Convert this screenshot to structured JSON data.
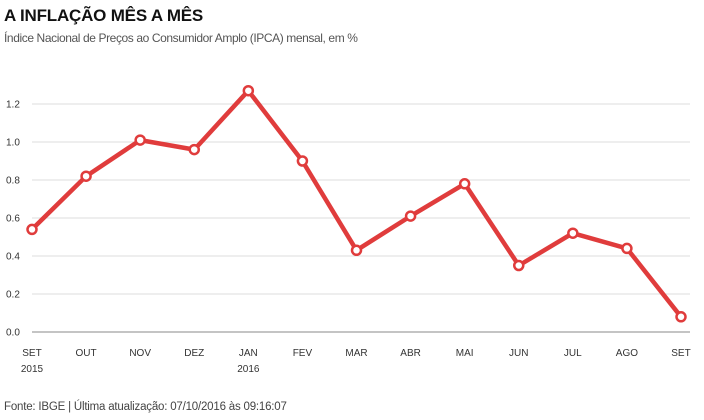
{
  "header": {
    "title": "A INFLAÇÃO MÊS A MÊS",
    "subtitle": "Índice Nacional de Preços ao Consumidor Amplo (IPCA) mensal, em %"
  },
  "footer": {
    "source": "Fonte: IBGE | Última atualização: 07/10/2016 às 09:16:07"
  },
  "chart_data": {
    "type": "line",
    "title": "A INFLAÇÃO MÊS A MÊS",
    "subtitle": "Índice Nacional de Preços ao Consumidor Amplo (IPCA) mensal, em %",
    "categories": [
      "SET",
      "OUT",
      "NOV",
      "DEZ",
      "JAN",
      "FEV",
      "MAR",
      "ABR",
      "MAI",
      "JUN",
      "JUL",
      "AGO",
      "SET"
    ],
    "year_labels": [
      "2015",
      "",
      "",
      "",
      "2016",
      "",
      "",
      "",
      "",
      "",
      "",
      "",
      ""
    ],
    "series": [
      {
        "values": [
          0.54,
          0.82,
          1.01,
          0.96,
          1.27,
          0.9,
          0.43,
          0.61,
          0.78,
          0.35,
          0.52,
          0.44,
          0.08
        ]
      }
    ],
    "yticks": [
      "0.0",
      "0.2",
      "0.4",
      "0.6",
      "0.8",
      "1.0",
      "1.2"
    ],
    "ylim": [
      0,
      1.3
    ],
    "grid": true,
    "line_color": "#e03c3c"
  }
}
